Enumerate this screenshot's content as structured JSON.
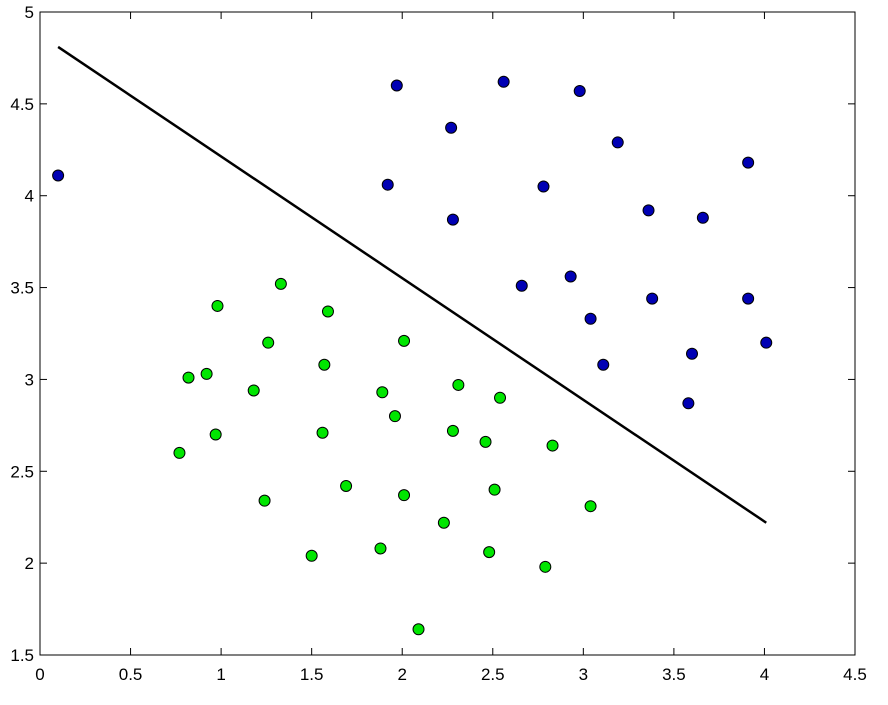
{
  "chart_data": {
    "type": "scatter",
    "xlim": [
      0,
      4.5
    ],
    "ylim": [
      1.5,
      5
    ],
    "xticks": [
      0,
      0.5,
      1,
      1.5,
      2,
      2.5,
      3,
      3.5,
      4,
      4.5
    ],
    "yticks": [
      1.5,
      2,
      2.5,
      3,
      3.5,
      4,
      4.5,
      5
    ],
    "grid": false,
    "series": [
      {
        "color": "#0000b4",
        "mode": "markers",
        "x": [
          0.1,
          1.97,
          2.56,
          2.98,
          2.27,
          3.19,
          3.91,
          1.92,
          2.78,
          3.36,
          3.66,
          2.28,
          2.93,
          2.66,
          3.38,
          3.91,
          3.04,
          4.01,
          3.6,
          3.11,
          3.58
        ],
        "values": [
          4.11,
          4.6,
          4.62,
          4.57,
          4.37,
          4.29,
          4.18,
          4.06,
          4.05,
          3.92,
          3.88,
          3.87,
          3.56,
          3.51,
          3.44,
          3.44,
          3.33,
          3.2,
          3.14,
          3.08,
          2.87
        ]
      },
      {
        "color": "#00e600",
        "mode": "markers",
        "x": [
          1.33,
          0.98,
          1.59,
          1.26,
          2.01,
          1.57,
          0.92,
          0.82,
          1.18,
          1.89,
          2.31,
          2.54,
          1.96,
          1.56,
          2.28,
          2.46,
          2.83,
          0.97,
          0.77,
          1.69,
          2.01,
          2.51,
          1.24,
          3.04,
          2.23,
          1.5,
          1.88,
          2.48,
          2.79,
          2.09
        ],
        "values": [
          3.52,
          3.4,
          3.37,
          3.2,
          3.21,
          3.08,
          3.03,
          3.01,
          2.94,
          2.93,
          2.97,
          2.9,
          2.8,
          2.71,
          2.72,
          2.66,
          2.64,
          2.7,
          2.6,
          2.42,
          2.37,
          2.4,
          2.34,
          2.31,
          2.22,
          2.04,
          2.08,
          2.06,
          1.98,
          1.64
        ]
      },
      {
        "color": "#000000",
        "mode": "line",
        "x": [
          0.1,
          4.01
        ],
        "values": [
          4.81,
          2.22
        ]
      }
    ]
  }
}
